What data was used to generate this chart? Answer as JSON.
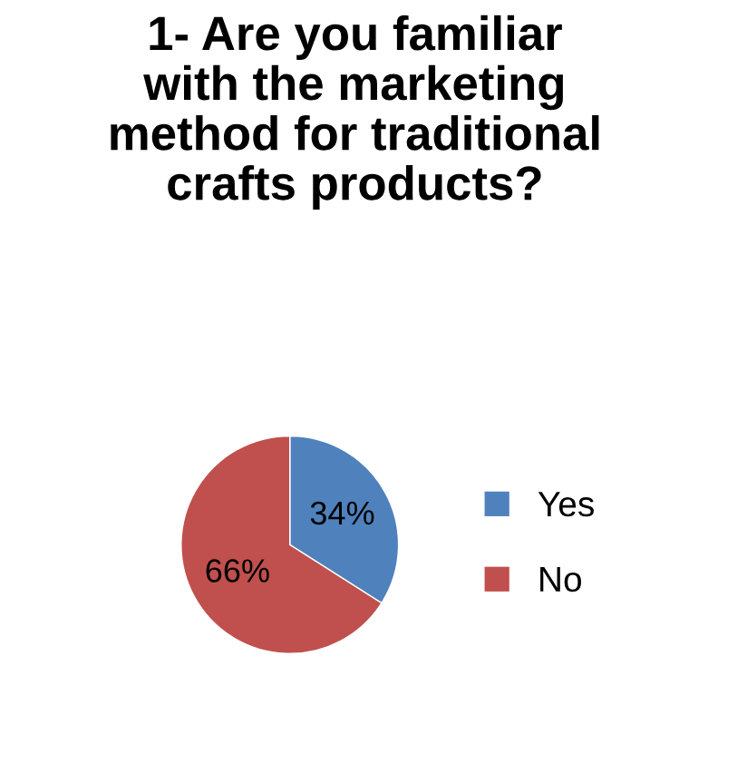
{
  "chart_data": {
    "type": "pie",
    "title": "1- Are you familiar\nwith the marketing\nmethod for traditional\ncrafts products?",
    "categories": [
      "Yes",
      "No"
    ],
    "values": [
      34,
      66
    ],
    "colors": [
      "#4f81bd",
      "#c0504d"
    ],
    "value_labels": [
      "34%",
      "66%"
    ],
    "legend": "right"
  }
}
